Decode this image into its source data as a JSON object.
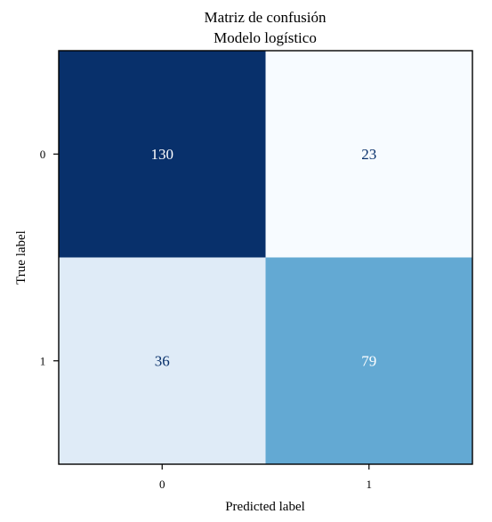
{
  "chart_data": {
    "type": "heatmap",
    "title": "Matriz de confusión",
    "subtitle": "Modelo logístico",
    "xlabel": "Predicted label",
    "ylabel": "True label",
    "x_categories": [
      "0",
      "1"
    ],
    "y_categories": [
      "0",
      "1"
    ],
    "values": [
      [
        130,
        23
      ],
      [
        36,
        79
      ]
    ],
    "colormap": "Blues",
    "colorbar": false,
    "grid": false
  }
}
